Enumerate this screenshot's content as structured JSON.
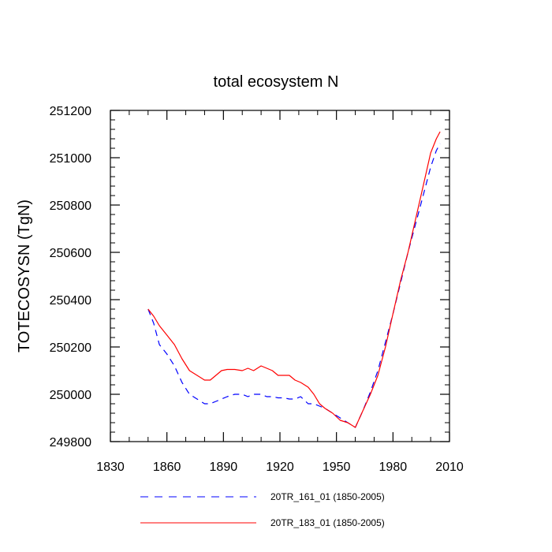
{
  "chart_data": {
    "type": "line",
    "title": "total ecosystem N",
    "xlabel": "",
    "ylabel": "TOTECOSYSN  (TgN)",
    "xlim": [
      1830,
      2010
    ],
    "ylim": [
      249800,
      251200
    ],
    "xticks": [
      1830,
      1860,
      1890,
      1920,
      1950,
      1980,
      2010
    ],
    "yticks": [
      249800,
      250000,
      250200,
      250400,
      250600,
      250800,
      251000,
      251200
    ],
    "series": [
      {
        "name": "20TR_161_01 (1850-2005)",
        "color": "#0000ff",
        "style": "dashed",
        "x": [
          1850,
          1853,
          1856,
          1860,
          1864,
          1868,
          1872,
          1876,
          1880,
          1883,
          1886,
          1889,
          1892,
          1896,
          1900,
          1903,
          1906,
          1910,
          1913,
          1916,
          1919,
          1922,
          1925,
          1928,
          1931,
          1935,
          1938,
          1941,
          1944,
          1948,
          1952,
          1956,
          1960,
          1964,
          1968,
          1972,
          1976,
          1980,
          1984,
          1988,
          1992,
          1996,
          2000,
          2003,
          2005
        ],
        "y": [
          250360,
          250300,
          250210,
          250170,
          250120,
          250050,
          250000,
          249980,
          249960,
          249960,
          249970,
          249980,
          249990,
          250000,
          250000,
          249990,
          250000,
          250000,
          249990,
          249990,
          249985,
          249985,
          249980,
          249980,
          249990,
          249960,
          249960,
          249950,
          249940,
          249920,
          249900,
          249880,
          249860,
          249930,
          250010,
          250100,
          250220,
          250340,
          250470,
          250600,
          250720,
          250840,
          250960,
          251030,
          251060
        ]
      },
      {
        "name": "20TR_183_01 (1850-2005)",
        "color": "#ff0000",
        "style": "solid",
        "x": [
          1850,
          1853,
          1856,
          1860,
          1864,
          1868,
          1872,
          1876,
          1880,
          1883,
          1886,
          1889,
          1892,
          1896,
          1900,
          1903,
          1906,
          1910,
          1913,
          1916,
          1919,
          1922,
          1925,
          1928,
          1931,
          1935,
          1938,
          1941,
          1944,
          1948,
          1952,
          1956,
          1960,
          1964,
          1968,
          1972,
          1976,
          1980,
          1984,
          1988,
          1992,
          1996,
          2000,
          2003,
          2005
        ],
        "y": [
          250360,
          250330,
          250290,
          250250,
          250210,
          250150,
          250100,
          250080,
          250060,
          250060,
          250080,
          250100,
          250105,
          250105,
          250100,
          250110,
          250100,
          250120,
          250110,
          250100,
          250080,
          250080,
          250080,
          250060,
          250050,
          250030,
          250000,
          249960,
          249940,
          249920,
          249890,
          249880,
          249860,
          249930,
          250000,
          250080,
          250200,
          250340,
          250480,
          250600,
          250740,
          250880,
          251020,
          251080,
          251110
        ]
      }
    ]
  }
}
